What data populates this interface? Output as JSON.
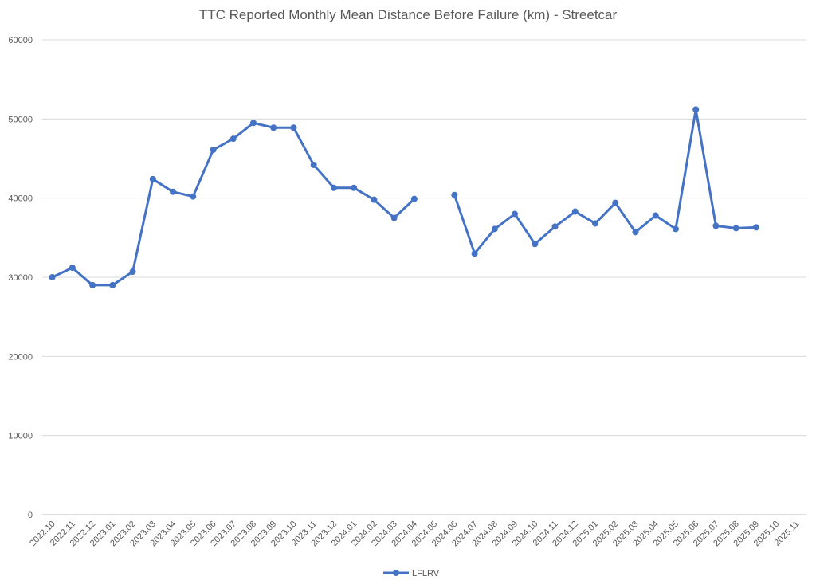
{
  "chart_data": {
    "type": "line",
    "title": "TTC Reported Monthly Mean Distance Before Failure (km) - Streetcar",
    "xlabel": "",
    "ylabel": "",
    "ylim": [
      0,
      60000
    ],
    "yticks": [
      0,
      10000,
      20000,
      30000,
      40000,
      50000,
      60000
    ],
    "grid": true,
    "legend_position": "bottom",
    "categories": [
      "2022.10",
      "2022.11",
      "2022.12",
      "2023.01",
      "2023.02",
      "2023.03",
      "2023.04",
      "2023.05",
      "2023.06",
      "2023.07",
      "2023.08",
      "2023.09",
      "2023.10",
      "2023.11",
      "2023.12",
      "2024.01",
      "2024.02",
      "2024.03",
      "2024.04",
      "2024.05",
      "2024.06",
      "2024.07",
      "2024.08",
      "2024.09",
      "2024.10",
      "2024.11",
      "2024.12",
      "2025.01",
      "2025.02",
      "2025.03",
      "2025.04",
      "2025.05",
      "2025.06",
      "2025.07",
      "2025.08",
      "2025.09",
      "2025.10",
      "2025.11"
    ],
    "series": [
      {
        "name": "LFLRV",
        "color": "#4472C4",
        "values": [
          30000,
          31200,
          29000,
          29000,
          30700,
          42400,
          40800,
          40200,
          46100,
          47500,
          49500,
          48900,
          48900,
          44200,
          41300,
          41300,
          39800,
          37500,
          39900,
          null,
          40400,
          33000,
          36100,
          38000,
          34200,
          36400,
          38300,
          36800,
          39400,
          35700,
          37800,
          36100,
          51200,
          36500,
          36200,
          36300,
          null,
          null
        ]
      }
    ]
  }
}
